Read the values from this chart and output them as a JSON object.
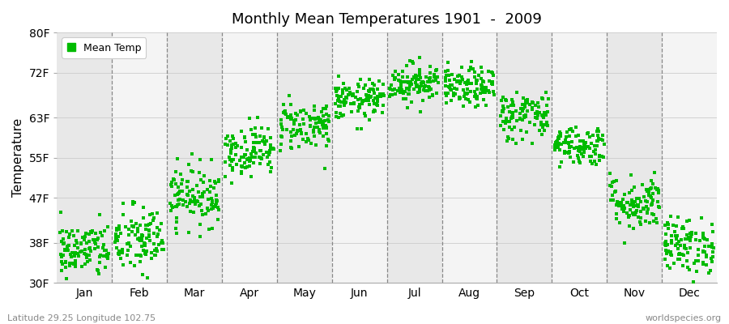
{
  "title": "Monthly Mean Temperatures 1901  -  2009",
  "ylabel": "Temperature",
  "xlabel_bottom_left": "Latitude 29.25 Longitude 102.75",
  "xlabel_bottom_right": "worldspecies.org",
  "legend_label": "Mean Temp",
  "ytick_labels": [
    "30F",
    "38F",
    "47F",
    "55F",
    "63F",
    "72F",
    "80F"
  ],
  "ytick_values": [
    30,
    38,
    47,
    55,
    63,
    72,
    80
  ],
  "month_labels": [
    "Jan",
    "Feb",
    "Mar",
    "Apr",
    "May",
    "Jun",
    "Jul",
    "Aug",
    "Sep",
    "Oct",
    "Nov",
    "Dec"
  ],
  "dot_color": "#00bb00",
  "plot_bg_color_dark": "#e8e8e8",
  "plot_bg_color_light": "#f4f4f4",
  "monthly_means": [
    36.5,
    38.5,
    47.5,
    56.5,
    61.5,
    66.5,
    70.0,
    69.0,
    63.5,
    57.5,
    46.0,
    37.5
  ],
  "monthly_stds": [
    2.8,
    3.5,
    3.0,
    2.5,
    2.5,
    2.0,
    2.0,
    2.0,
    2.5,
    2.0,
    2.8,
    2.8
  ],
  "n_years": 109,
  "seed": 42,
  "figsize": [
    9.0,
    4.0
  ],
  "dpi": 100
}
